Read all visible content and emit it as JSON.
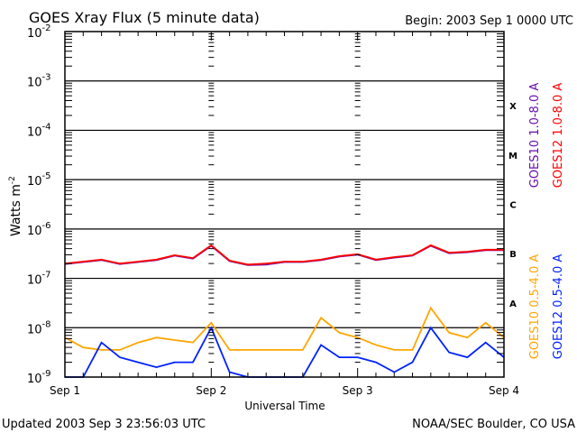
{
  "chart_data": {
    "type": "line",
    "title": "GOES Xray Flux (5 minute data)",
    "begin_label": "Begin:  2003 Sep 1 0000 UTC",
    "xlabel": "Universal Time",
    "ylabel": "Watts m",
    "ylabel_exp": "-2",
    "y_scale": "log",
    "ylim_exp": [
      -9,
      -2
    ],
    "y_ticks": [
      {
        "base": "10",
        "exp": "-2"
      },
      {
        "base": "10",
        "exp": "-3"
      },
      {
        "base": "10",
        "exp": "-4"
      },
      {
        "base": "10",
        "exp": "-5"
      },
      {
        "base": "10",
        "exp": "-6"
      },
      {
        "base": "10",
        "exp": "-7"
      },
      {
        "base": "10",
        "exp": "-8"
      },
      {
        "base": "10",
        "exp": "-9"
      }
    ],
    "x_unit": "hours since 2003 Sep 1 0000 UTC",
    "xlim": [
      0,
      72
    ],
    "x_ticks": [
      "Sep 1",
      "Sep 2",
      "Sep 3",
      "Sep 4"
    ],
    "flare_classes": [
      "X",
      "M",
      "C",
      "B",
      "A"
    ],
    "grid": "horizontal decade lines",
    "x": [
      0,
      3,
      6,
      9,
      12,
      15,
      18,
      21,
      24,
      27,
      30,
      33,
      36,
      39,
      42,
      45,
      48,
      51,
      54,
      57,
      60,
      63,
      66,
      69,
      72
    ],
    "series": [
      {
        "name": "GOES10 1.0-8.0 A",
        "color": "#6a0dad",
        "log10_values": [
          -6.71,
          -6.67,
          -6.63,
          -6.71,
          -6.67,
          -6.63,
          -6.54,
          -6.6,
          -6.34,
          -6.65,
          -6.73,
          -6.72,
          -6.67,
          -6.67,
          -6.63,
          -6.56,
          -6.52,
          -6.63,
          -6.58,
          -6.54,
          -6.34,
          -6.49,
          -6.47,
          -6.43,
          -6.43
        ]
      },
      {
        "name": "GOES12 1.0-8.0 A",
        "color": "#ff0000",
        "log10_values": [
          -6.7,
          -6.66,
          -6.62,
          -6.7,
          -6.66,
          -6.62,
          -6.53,
          -6.59,
          -6.33,
          -6.64,
          -6.72,
          -6.7,
          -6.66,
          -6.66,
          -6.62,
          -6.55,
          -6.51,
          -6.62,
          -6.57,
          -6.53,
          -6.33,
          -6.48,
          -6.46,
          -6.42,
          -6.42
        ]
      },
      {
        "name": "GOES10 0.5-4.0 A",
        "color": "#ffa500",
        "log10_values": [
          -8.2,
          -8.4,
          -8.45,
          -8.45,
          -8.3,
          -8.2,
          -8.25,
          -8.3,
          -7.9,
          -8.45,
          -8.45,
          -8.45,
          -8.45,
          -8.45,
          -7.8,
          -8.1,
          -8.2,
          -8.35,
          -8.45,
          -8.45,
          -7.6,
          -8.1,
          -8.2,
          -7.9,
          -8.2
        ]
      },
      {
        "name": "GOES12 0.5-4.0 A",
        "color": "#0022ff",
        "log10_values": [
          -9,
          -9,
          -8.3,
          -8.6,
          -8.7,
          -8.8,
          -8.7,
          -8.7,
          -8.0,
          -8.9,
          -9,
          -9,
          -9,
          -9,
          -8.35,
          -8.6,
          -8.6,
          -8.7,
          -8.9,
          -8.7,
          -8.0,
          -8.5,
          -8.6,
          -8.3,
          -8.6
        ]
      }
    ]
  },
  "footer": {
    "updated": "Updated 2003 Sep  3 23:56:03 UTC",
    "credit": "NOAA/SEC Boulder, CO USA"
  }
}
